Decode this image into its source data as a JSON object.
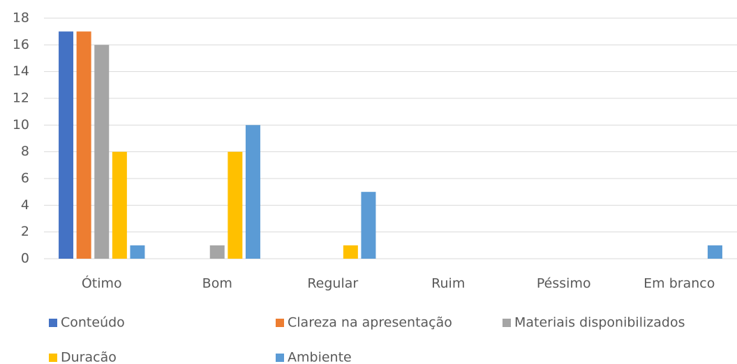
{
  "chart_data": {
    "type": "bar",
    "categories": [
      "Ótimo",
      "Bom",
      "Regular",
      "Ruim",
      "Péssimo",
      "Em branco"
    ],
    "series": [
      {
        "name": "Conteúdo",
        "color": "#4472c4",
        "values": [
          17,
          0,
          0,
          0,
          0,
          0
        ]
      },
      {
        "name": "Clareza na apresentação",
        "color": "#ed7d31",
        "values": [
          17,
          0,
          0,
          0,
          0,
          0
        ]
      },
      {
        "name": "Materiais disponibilizados",
        "color": "#a5a5a5",
        "values": [
          16,
          1,
          0,
          0,
          0,
          0
        ]
      },
      {
        "name": "Duracão",
        "color": "#ffc000",
        "values": [
          8,
          8,
          1,
          0,
          0,
          0
        ]
      },
      {
        "name": "Ambiente",
        "color": "#5b9bd5",
        "values": [
          1,
          10,
          5,
          0,
          0,
          1
        ]
      }
    ],
    "ylim": [
      0,
      18
    ],
    "yticks": [
      0,
      2,
      4,
      6,
      8,
      10,
      12,
      14,
      16,
      18
    ],
    "grid": true,
    "legend": "bottom"
  }
}
